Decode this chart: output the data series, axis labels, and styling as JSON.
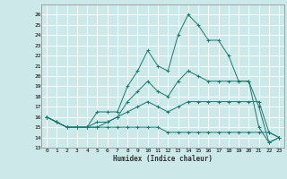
{
  "xlabel": "Humidex (Indice chaleur)",
  "background_color": "#cce8e8",
  "grid_color": "#ffffff",
  "line_color": "#1a7a6e",
  "xlim": [
    -0.5,
    23.5
  ],
  "ylim": [
    13,
    27
  ],
  "xticks": [
    0,
    1,
    2,
    3,
    4,
    5,
    6,
    7,
    8,
    9,
    10,
    11,
    12,
    13,
    14,
    15,
    16,
    17,
    18,
    19,
    20,
    21,
    22,
    23
  ],
  "yticks": [
    13,
    14,
    15,
    16,
    17,
    18,
    19,
    20,
    21,
    22,
    23,
    24,
    25,
    26
  ],
  "series": [
    [
      16.0,
      15.5,
      15.0,
      15.0,
      15.0,
      16.5,
      16.5,
      16.5,
      19.0,
      20.5,
      22.5,
      21.0,
      20.5,
      24.0,
      26.0,
      25.0,
      23.5,
      23.5,
      22.0,
      19.5,
      19.5,
      15.0,
      13.5,
      14.0
    ],
    [
      16.0,
      15.5,
      15.0,
      15.0,
      15.0,
      15.5,
      15.5,
      16.0,
      17.5,
      18.5,
      19.5,
      18.5,
      18.0,
      19.5,
      20.5,
      20.0,
      19.5,
      19.5,
      19.5,
      19.5,
      19.5,
      17.0,
      13.5,
      14.0
    ],
    [
      16.0,
      15.5,
      15.0,
      15.0,
      15.0,
      15.0,
      15.5,
      16.0,
      16.5,
      17.0,
      17.5,
      17.0,
      16.5,
      17.0,
      17.5,
      17.5,
      17.5,
      17.5,
      17.5,
      17.5,
      17.5,
      17.5,
      14.5,
      14.0
    ],
    [
      16.0,
      15.5,
      15.0,
      15.0,
      15.0,
      15.0,
      15.0,
      15.0,
      15.0,
      15.0,
      15.0,
      15.0,
      14.5,
      14.5,
      14.5,
      14.5,
      14.5,
      14.5,
      14.5,
      14.5,
      14.5,
      14.5,
      14.5,
      14.0
    ]
  ]
}
